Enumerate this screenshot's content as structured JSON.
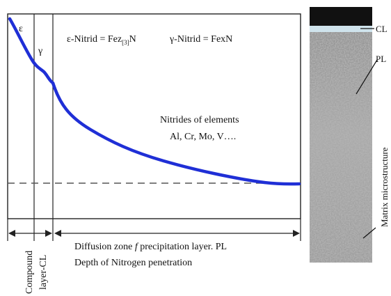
{
  "diagram": {
    "phases": {
      "epsilon": "ε",
      "gamma": "γ"
    },
    "formulas": {
      "epsilon_prefix": "ε-Nitrid = Fez",
      "epsilon_subscript": "[3]",
      "epsilon_suffix": "N",
      "gamma": "γ-Nitrid = FexN"
    },
    "nitrides": {
      "line1": "Nitrides of elements",
      "line2": "Al, Cr, Mo, V…."
    },
    "zones": {
      "diffusion": "Diffusion zone",
      "diffusion_separator": "f",
      "diffusion_rest": "precipitation layer. PL",
      "depth": "Depth of Nitrogen penetration"
    },
    "compound_label": {
      "line1": "Compound",
      "line2": "layer-CL"
    },
    "micrograph": {
      "cl": "CL",
      "pl": "PL",
      "matrix": "Matrix microstructure"
    },
    "colors": {
      "curve": "#1f2fd6",
      "frame": "#222222",
      "dashed": "#555555"
    }
  }
}
